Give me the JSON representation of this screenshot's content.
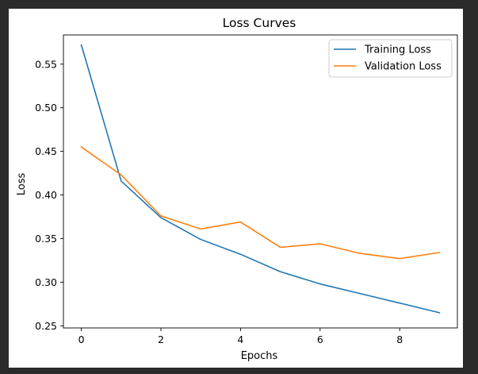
{
  "chart_data": {
    "type": "line",
    "title": "Loss Curves",
    "xlabel": "Epochs",
    "ylabel": "Loss",
    "x": [
      0,
      1,
      2,
      3,
      4,
      5,
      6,
      7,
      8,
      9
    ],
    "xlim": [
      -0.45,
      9.45
    ],
    "ylim": [
      0.2475,
      0.5835
    ],
    "xticks": [
      0,
      2,
      4,
      6,
      8
    ],
    "yticks": [
      0.25,
      0.3,
      0.35,
      0.4,
      0.45,
      0.5,
      0.55
    ],
    "xtick_labels": [
      "0",
      "2",
      "4",
      "6",
      "8"
    ],
    "ytick_labels": [
      "0.25",
      "0.30",
      "0.35",
      "0.40",
      "0.45",
      "0.50",
      "0.55"
    ],
    "grid": false,
    "legend_position": "top-right",
    "series": [
      {
        "name": "Training Loss",
        "color": "#1f77b4",
        "values": [
          0.572,
          0.416,
          0.374,
          0.349,
          0.332,
          0.312,
          0.298,
          0.287,
          0.276,
          0.265
        ]
      },
      {
        "name": "Validation Loss",
        "color": "#ff7f0e",
        "values": [
          0.455,
          0.423,
          0.376,
          0.361,
          0.369,
          0.34,
          0.344,
          0.333,
          0.327,
          0.334
        ]
      }
    ]
  }
}
